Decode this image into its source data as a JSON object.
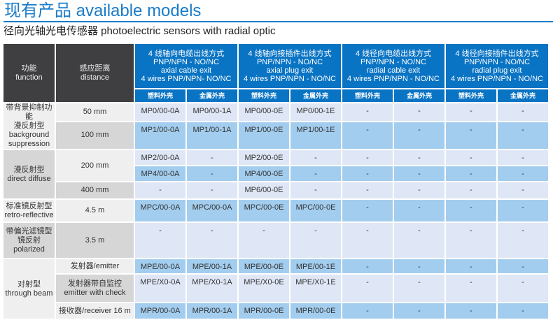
{
  "title": "现有产品 available models",
  "subtitle": "径向光轴光电传感器 photoelectric sensors with radial  optic",
  "header": {
    "function": [
      "功能",
      "function"
    ],
    "distance": [
      "感应距离",
      "distance"
    ],
    "groups": [
      [
        "4 线轴向电缆出线方式",
        "PNP/NPN - NO/NC",
        "axial cable exit",
        "4 wires PNP/NPN- NO/NC"
      ],
      [
        "4 线轴向接插件出线方式",
        "PNP/NPN - NO/NC",
        "axial plug exit",
        "4 wires PNP/NPN - NO/NC"
      ],
      [
        "4 线径向电缆出线方式",
        "PNP/NPN - NO/NC",
        "radial cable exit",
        "4 wires PNP/NPN - NO/NC"
      ],
      [
        "4 线径向接插件出线方式",
        "PNP/NPN - NO/NC",
        "radial plug exit",
        "4 wires PNP/NPN - NO/NC"
      ]
    ],
    "plastic": "塑料外壳",
    "metal": "金属外壳"
  },
  "functions": [
    [
      "带背景抑制功能",
      "漫反射型",
      "background",
      "suppression"
    ],
    [
      "漫反射型",
      "direct diffuse"
    ],
    [
      "标准镜反射型",
      "retro-reflective"
    ],
    [
      "带偏光滤镜型",
      "镜反射",
      "polarized"
    ],
    [
      "对射型",
      "through beam"
    ]
  ],
  "distances": [
    "50 mm",
    "100 mm",
    "200 mm",
    "400 mm",
    "4.5 m",
    "3.5 m",
    "发射器/emitter",
    [
      "发射器带自监控",
      "emitter with check"
    ],
    "接收器/receiver 16 m"
  ],
  "rows": [
    [
      "MP0/00-0A",
      "MP0/00-1A",
      "MP0/00-0E",
      "MP0/00-1E",
      "-",
      "-",
      "-",
      "-"
    ],
    [
      "MP1/00-0A",
      "MP1/00-1A",
      "MP1/00-0E",
      "MP1/00-1E",
      "-",
      "-",
      "-",
      "-"
    ],
    [
      "MP2/00-0A",
      "-",
      "MP2/00-0E",
      "-",
      "-",
      "-",
      "-",
      "-"
    ],
    [
      "MP4/00-0A",
      "-",
      "MP4/00-0E",
      "-",
      "-",
      "-",
      "-",
      "-"
    ],
    [
      "-",
      "-",
      "MP6/00-0E",
      "-",
      "-",
      "-",
      "-",
      "-"
    ],
    [
      "MPC/00-0A",
      "MPC/00-0A",
      "MPC/00-0E",
      "MPC/00-0E",
      "-",
      "-",
      "-",
      "-"
    ],
    [
      "-",
      "-",
      "-",
      "-",
      "-",
      "-",
      "-",
      "-"
    ],
    [
      "MPE/00-0A",
      "MPE/00-1A",
      "MPE/00-0E",
      "MPE/00-1E",
      "-",
      "-",
      "-",
      "-"
    ],
    [
      "MPE/X0-0A",
      "MPE/X0-1A",
      "MPE/X0-0E",
      "MPE/X0-1E",
      "-",
      "-",
      "-",
      "-"
    ],
    [
      "MPR/00-0A",
      "MPR/00-1A",
      "MPR/00-0E",
      "MPR/00-0E",
      "-",
      "-",
      "-",
      "-"
    ]
  ]
}
